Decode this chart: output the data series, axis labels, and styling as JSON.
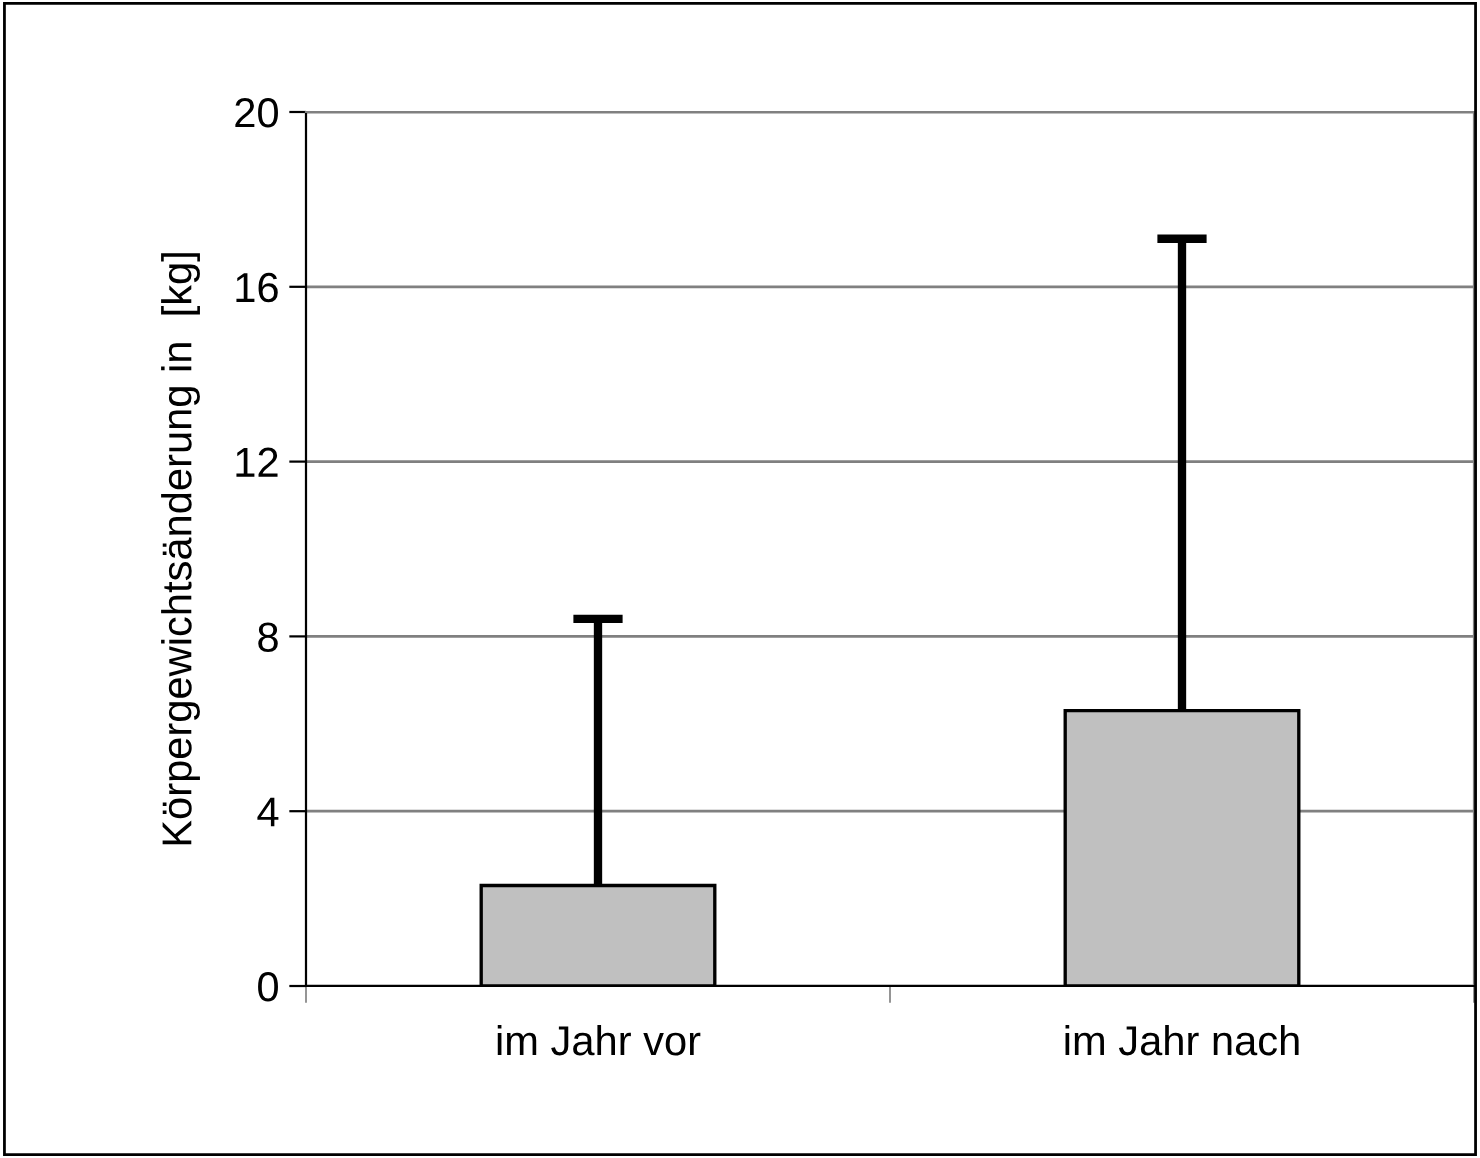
{
  "chart_data": {
    "type": "bar",
    "ylabel": "Körpergewichtsänderung in  [kg]",
    "categories": [
      "im Jahr vor",
      "im Jahr nach"
    ],
    "values": [
      2.3,
      6.3
    ],
    "color": "#c0c0c0",
    "errors": [
      [
        2.3,
        8.4
      ],
      [
        6.3,
        17.1
      ]
    ],
    "ylim": [
      0,
      20
    ],
    "yticks": [
      0,
      4,
      8,
      12,
      16,
      20
    ],
    "grid": "y"
  }
}
